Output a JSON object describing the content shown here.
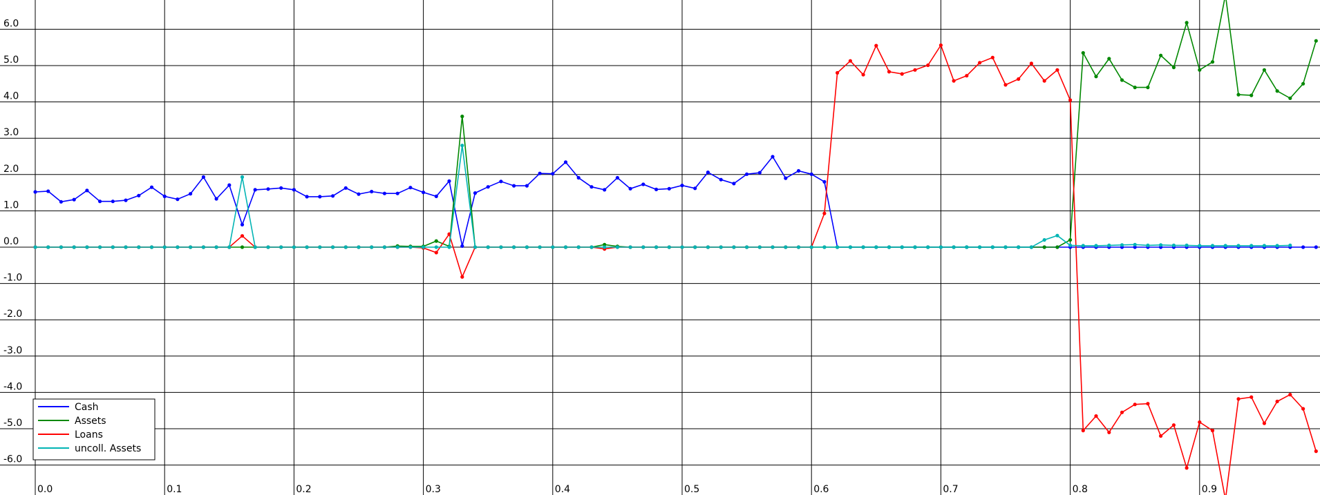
{
  "chart_data": {
    "type": "line",
    "grid": true,
    "legend_position": "bottom-left",
    "xlim": [
      -0.005,
      0.99
    ],
    "ylim": [
      -6.7,
      6.8
    ],
    "x_ticks": [
      "0.0",
      "0.1",
      "0.2",
      "0.3",
      "0.4",
      "0.5",
      "0.6",
      "0.7",
      "0.8",
      "0.9"
    ],
    "y_ticks": [
      "6.0",
      "5.0",
      "4.0",
      "3.0",
      "2.0",
      "1.0",
      "0.0",
      "-1.0",
      "-2.0",
      "-3.0",
      "-4.0",
      "-5.0",
      "-6.0"
    ],
    "x_start": 0.0,
    "x_step": 0.01,
    "series": [
      {
        "name": "Cash",
        "color": "#0000ff",
        "values": [
          1.52,
          1.54,
          1.25,
          1.31,
          1.56,
          1.26,
          1.26,
          1.29,
          1.42,
          1.65,
          1.4,
          1.32,
          1.47,
          1.93,
          1.33,
          1.71,
          0.62,
          1.58,
          1.6,
          1.63,
          1.58,
          1.39,
          1.39,
          1.41,
          1.63,
          1.46,
          1.53,
          1.48,
          1.48,
          1.64,
          1.51,
          1.4,
          1.82,
          0.03,
          1.49,
          1.66,
          1.81,
          1.69,
          1.69,
          2.03,
          2.02,
          2.34,
          1.91,
          1.66,
          1.58,
          1.91,
          1.61,
          1.73,
          1.59,
          1.61,
          1.7,
          1.62,
          2.06,
          1.86,
          1.75,
          2.01,
          2.05,
          2.49,
          1.9,
          2.1,
          2.01,
          1.8,
          0.0,
          0.0,
          0.0,
          0.0,
          0.0,
          0.0,
          0.0,
          0.0,
          0.0,
          0.0,
          0.0,
          0.0,
          0.0,
          0.0,
          0.0,
          0.0,
          0.0,
          0.0,
          0.0,
          0.0,
          0.0,
          0.0,
          0.0,
          0.0,
          0.0,
          0.0,
          0.0,
          0.0,
          0.0,
          0.0,
          0.0,
          0.0,
          0.0,
          0.0,
          0.0,
          0.0,
          0.0,
          0.0
        ]
      },
      {
        "name": "Assets",
        "color": "#008800",
        "values": [
          0,
          0,
          0,
          0,
          0,
          0,
          0,
          0,
          0,
          0,
          0,
          0,
          0,
          0,
          0,
          0,
          0,
          0,
          0,
          0,
          0,
          0,
          0,
          0,
          0,
          0,
          0,
          0,
          0.03,
          0.02,
          0.02,
          0.17,
          0.02,
          3.6,
          0,
          0,
          0,
          0,
          0,
          0,
          0,
          0,
          0,
          0,
          0.07,
          0.02,
          0,
          0,
          0,
          0,
          0,
          0,
          0,
          0,
          0,
          0,
          0,
          0,
          0,
          0,
          0,
          0,
          0,
          0,
          0,
          0,
          0,
          0,
          0,
          0,
          0,
          0,
          0,
          0,
          0,
          0,
          0,
          0,
          0,
          0,
          0.2,
          5.35,
          4.7,
          5.19,
          4.6,
          4.4,
          4.4,
          5.28,
          4.95,
          6.18,
          4.88,
          5.1,
          6.95,
          4.2,
          4.18,
          4.88,
          4.3,
          4.1,
          4.5,
          5.68
        ]
      },
      {
        "name": "Loans",
        "color": "#ff0000",
        "values": [
          0,
          0,
          0,
          0,
          0,
          0,
          0,
          0,
          0,
          0,
          0,
          0,
          0,
          0,
          0,
          0,
          0.31,
          0,
          0,
          0,
          0,
          0,
          0,
          0,
          0,
          0,
          0,
          0,
          0,
          0,
          -0.02,
          -0.15,
          0.36,
          -0.82,
          0,
          0,
          0,
          0,
          0,
          0,
          0,
          0,
          0,
          0,
          -0.05,
          0,
          0,
          0,
          0,
          0,
          0,
          0,
          0,
          0,
          0,
          0,
          0,
          0,
          0,
          0,
          0,
          0.93,
          4.8,
          5.13,
          4.75,
          5.55,
          4.83,
          4.77,
          4.88,
          5.01,
          5.56,
          4.58,
          4.72,
          5.08,
          5.22,
          4.47,
          4.63,
          5.06,
          4.58,
          4.88,
          4.05,
          -5.05,
          -4.65,
          -5.1,
          -4.55,
          -4.33,
          -4.31,
          -5.2,
          -4.9,
          -6.08,
          -4.82,
          -5.05,
          -6.95,
          -4.18,
          -4.13,
          -4.85,
          -4.25,
          -4.06,
          -4.45,
          -5.62
        ]
      },
      {
        "name": "uncoll. Assets",
        "color": "#00b4b4",
        "values": [
          0,
          0,
          0,
          0,
          0,
          0,
          0,
          0,
          0,
          0,
          0,
          0,
          0,
          0,
          0,
          0,
          1.93,
          0,
          0,
          0,
          0,
          0,
          0,
          0,
          0,
          0,
          0,
          0,
          0,
          0,
          0,
          0,
          0,
          2.8,
          0,
          0,
          0,
          0,
          0,
          0,
          0,
          0,
          0,
          0,
          0,
          0,
          0,
          0,
          0,
          0,
          0,
          0,
          0,
          0,
          0,
          0,
          0,
          0,
          0,
          0,
          0,
          0,
          0,
          0,
          0,
          0,
          0,
          0,
          0,
          0,
          0,
          0,
          0,
          0,
          0,
          0,
          0,
          0,
          0.2,
          0.32,
          0.05,
          0.04,
          0.04,
          0.05,
          0.06,
          0.07,
          0.05,
          0.06,
          0.05,
          0.05,
          0.04,
          0.04,
          0.04,
          0.04,
          0.04,
          0.04,
          0.04,
          0.05
        ]
      }
    ]
  }
}
